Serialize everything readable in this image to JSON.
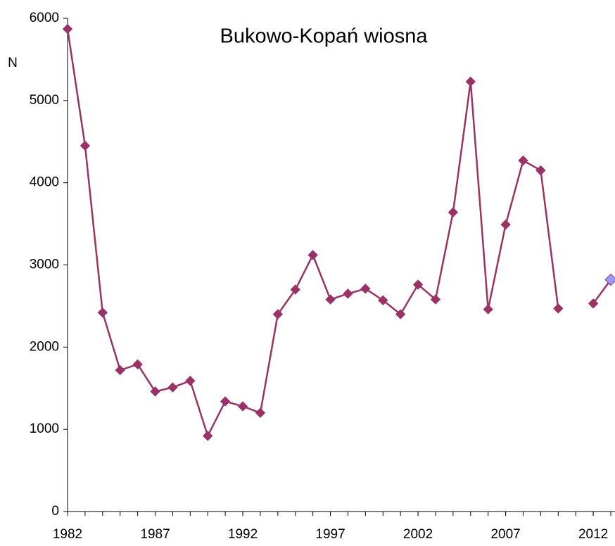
{
  "chart_data": {
    "type": "line",
    "title": "Bukowo-Kopań wiosna",
    "y_label": "N",
    "x": [
      1982,
      1983,
      1984,
      1985,
      1986,
      1987,
      1988,
      1989,
      1990,
      1991,
      1992,
      1993,
      1994,
      1995,
      1996,
      1997,
      1998,
      1999,
      2000,
      2001,
      2002,
      2003,
      2004,
      2005,
      2006,
      2007,
      2008,
      2009,
      2010,
      2011,
      2012,
      2013
    ],
    "series": [
      {
        "name": "N",
        "color": "#993366",
        "highlight_color": "#9999ff",
        "values": [
          5870,
          4450,
          2420,
          1720,
          1790,
          1460,
          1510,
          1590,
          920,
          1340,
          1280,
          1200,
          2400,
          2700,
          3120,
          2580,
          2650,
          2710,
          2570,
          2400,
          2760,
          2580,
          3640,
          5230,
          2460,
          3490,
          4270,
          4150,
          2470,
          null,
          2530,
          2820
        ]
      }
    ],
    "xlim": [
      1982,
      2013
    ],
    "xticks": [
      1982,
      1987,
      1992,
      1997,
      2002,
      2007,
      2012
    ],
    "ylim": [
      0,
      6000
    ],
    "yticks": [
      0,
      1000,
      2000,
      3000,
      4000,
      5000,
      6000
    ],
    "grid": false
  }
}
